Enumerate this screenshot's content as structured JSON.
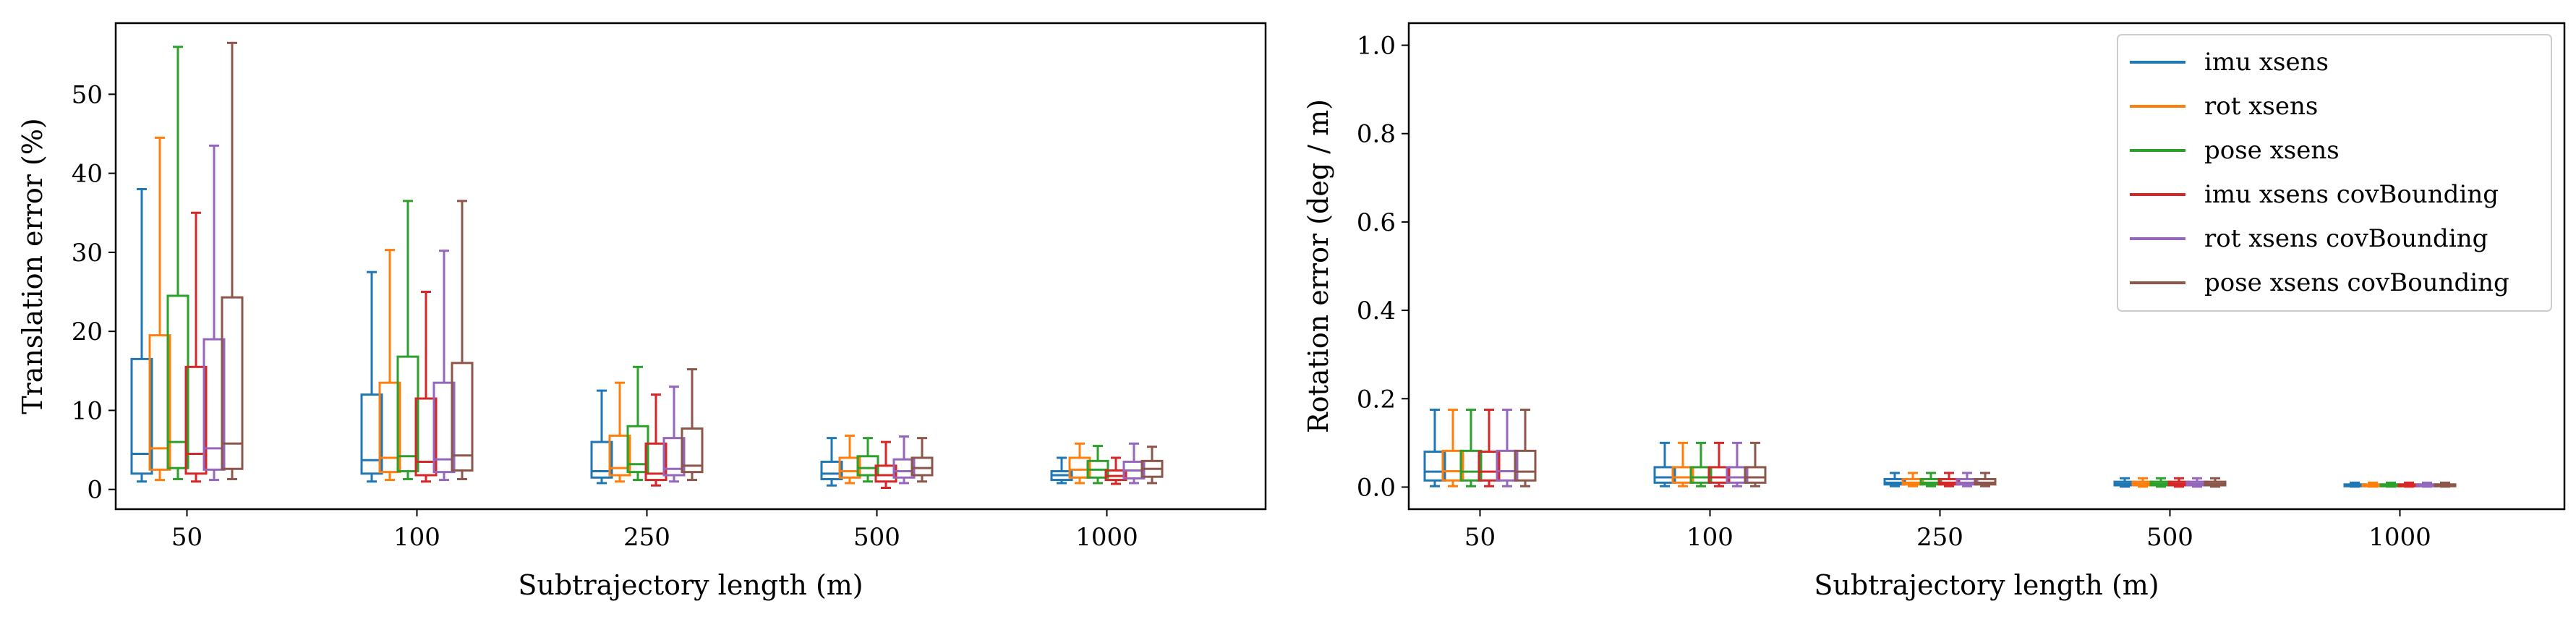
{
  "chart_data": [
    {
      "type": "box",
      "panel": "left",
      "xlabel": "Subtrajectory length (m)",
      "ylabel": "Translation error (%)",
      "categories": [
        "50",
        "100",
        "250",
        "500",
        "1000"
      ],
      "ylim": [
        -2.5,
        59
      ],
      "yticks": [
        0,
        10,
        20,
        30,
        40,
        50
      ],
      "series": [
        {
          "name": "imu xsens",
          "color": "#1f77b4",
          "boxes": [
            {
              "whislo": 1,
              "q1": 2,
              "med": 4.5,
              "q3": 16.5,
              "whishi": 38
            },
            {
              "whislo": 1,
              "q1": 2,
              "med": 3.7,
              "q3": 12,
              "whishi": 27.5
            },
            {
              "whislo": 0.8,
              "q1": 1.5,
              "med": 2.3,
              "q3": 6,
              "whishi": 12.5
            },
            {
              "whislo": 0.5,
              "q1": 1.3,
              "med": 2,
              "q3": 3.5,
              "whishi": 6.5
            },
            {
              "whislo": 0.8,
              "q1": 1.2,
              "med": 1.8,
              "q3": 2.3,
              "whishi": 4
            }
          ]
        },
        {
          "name": "rot xsens",
          "color": "#ff7f0e",
          "boxes": [
            {
              "whislo": 1.2,
              "q1": 2.5,
              "med": 5.2,
              "q3": 19.5,
              "whishi": 44.5
            },
            {
              "whislo": 1.2,
              "q1": 2.2,
              "med": 4,
              "q3": 13.5,
              "whishi": 30.3
            },
            {
              "whislo": 1,
              "q1": 1.8,
              "med": 2.7,
              "q3": 6.8,
              "whishi": 13.5
            },
            {
              "whislo": 0.8,
              "q1": 1.5,
              "med": 2.3,
              "q3": 4,
              "whishi": 6.8
            },
            {
              "whislo": 0.8,
              "q1": 1.5,
              "med": 2.5,
              "q3": 4,
              "whishi": 5.8
            }
          ]
        },
        {
          "name": "pose xsens",
          "color": "#2ca02c",
          "boxes": [
            {
              "whislo": 1.3,
              "q1": 2.7,
              "med": 6,
              "q3": 24.5,
              "whishi": 56
            },
            {
              "whislo": 1.3,
              "q1": 2.3,
              "med": 4.2,
              "q3": 16.8,
              "whishi": 36.5
            },
            {
              "whislo": 1.2,
              "q1": 2.2,
              "med": 3.2,
              "q3": 8,
              "whishi": 15.5
            },
            {
              "whislo": 1,
              "q1": 1.8,
              "med": 2.7,
              "q3": 4.2,
              "whishi": 6.5
            },
            {
              "whislo": 0.8,
              "q1": 1.5,
              "med": 2.5,
              "q3": 3.6,
              "whishi": 5.5
            }
          ]
        },
        {
          "name": "imu xsens covBounding",
          "color": "#d62728",
          "boxes": [
            {
              "whislo": 1,
              "q1": 2,
              "med": 4.5,
              "q3": 15.5,
              "whishi": 35
            },
            {
              "whislo": 1,
              "q1": 1.8,
              "med": 3.5,
              "q3": 11.5,
              "whishi": 25
            },
            {
              "whislo": 0.5,
              "q1": 1.2,
              "med": 2,
              "q3": 5.8,
              "whishi": 12
            },
            {
              "whislo": 0.2,
              "q1": 1,
              "med": 1.8,
              "q3": 3,
              "whishi": 6
            },
            {
              "whislo": 0.7,
              "q1": 1.2,
              "med": 1.7,
              "q3": 2.4,
              "whishi": 4
            }
          ]
        },
        {
          "name": "rot xsens covBounding",
          "color": "#9467bd",
          "boxes": [
            {
              "whislo": 1.2,
              "q1": 2.5,
              "med": 5.2,
              "q3": 19,
              "whishi": 43.5
            },
            {
              "whislo": 1.2,
              "q1": 2.2,
              "med": 3.8,
              "q3": 13.5,
              "whishi": 30.2
            },
            {
              "whislo": 1,
              "q1": 1.8,
              "med": 2.6,
              "q3": 6.5,
              "whishi": 13
            },
            {
              "whislo": 0.8,
              "q1": 1.5,
              "med": 2.3,
              "q3": 3.8,
              "whishi": 6.7
            },
            {
              "whislo": 0.8,
              "q1": 1.4,
              "med": 2.4,
              "q3": 3.5,
              "whishi": 5.8
            }
          ]
        },
        {
          "name": "pose xsens covBounding",
          "color": "#8c564b",
          "boxes": [
            {
              "whislo": 1.3,
              "q1": 2.6,
              "med": 5.8,
              "q3": 24.3,
              "whishi": 56.5
            },
            {
              "whislo": 1.3,
              "q1": 2.4,
              "med": 4.3,
              "q3": 16,
              "whishi": 36.5
            },
            {
              "whislo": 1.2,
              "q1": 2.2,
              "med": 3,
              "q3": 7.7,
              "whishi": 15.2
            },
            {
              "whislo": 1,
              "q1": 1.8,
              "med": 2.7,
              "q3": 4,
              "whishi": 6.5
            },
            {
              "whislo": 0.8,
              "q1": 1.6,
              "med": 2.6,
              "q3": 3.6,
              "whishi": 5.4
            }
          ]
        }
      ]
    },
    {
      "type": "box",
      "panel": "right",
      "xlabel": "Subtrajectory length (m)",
      "ylabel": "Rotation error (deg / m)",
      "categories": [
        "50",
        "100",
        "250",
        "500",
        "1000"
      ],
      "ylim": [
        -0.05,
        1.05
      ],
      "yticks": [
        0.0,
        0.2,
        0.4,
        0.6,
        0.8,
        1.0
      ],
      "ytick_labels": [
        "0.0",
        "0.2",
        "0.4",
        "0.6",
        "0.8",
        "1.0"
      ],
      "legend": "top-right",
      "series": [
        {
          "name": "imu xsens",
          "color": "#1f77b4",
          "boxes": [
            {
              "whislo": 0.002,
              "q1": 0.015,
              "med": 0.035,
              "q3": 0.08,
              "whishi": 0.175
            },
            {
              "whislo": 0.002,
              "q1": 0.01,
              "med": 0.022,
              "q3": 0.045,
              "whishi": 0.1
            },
            {
              "whislo": 0.002,
              "q1": 0.006,
              "med": 0.01,
              "q3": 0.018,
              "whishi": 0.032
            },
            {
              "whislo": 0.001,
              "q1": 0.004,
              "med": 0.007,
              "q3": 0.012,
              "whishi": 0.02
            },
            {
              "whislo": 0.001,
              "q1": 0.002,
              "med": 0.004,
              "q3": 0.006,
              "whishi": 0.01
            }
          ]
        },
        {
          "name": "rot xsens",
          "color": "#ff7f0e",
          "boxes": [
            {
              "whislo": 0.002,
              "q1": 0.015,
              "med": 0.036,
              "q3": 0.082,
              "whishi": 0.175
            },
            {
              "whislo": 0.002,
              "q1": 0.01,
              "med": 0.022,
              "q3": 0.045,
              "whishi": 0.1
            },
            {
              "whislo": 0.002,
              "q1": 0.006,
              "med": 0.01,
              "q3": 0.018,
              "whishi": 0.032
            },
            {
              "whislo": 0.001,
              "q1": 0.004,
              "med": 0.007,
              "q3": 0.012,
              "whishi": 0.02
            },
            {
              "whislo": 0.001,
              "q1": 0.002,
              "med": 0.004,
              "q3": 0.006,
              "whishi": 0.01
            }
          ]
        },
        {
          "name": "pose xsens",
          "color": "#2ca02c",
          "boxes": [
            {
              "whislo": 0.002,
              "q1": 0.015,
              "med": 0.035,
              "q3": 0.082,
              "whishi": 0.175
            },
            {
              "whislo": 0.002,
              "q1": 0.01,
              "med": 0.022,
              "q3": 0.045,
              "whishi": 0.1
            },
            {
              "whislo": 0.002,
              "q1": 0.006,
              "med": 0.01,
              "q3": 0.018,
              "whishi": 0.032
            },
            {
              "whislo": 0.001,
              "q1": 0.004,
              "med": 0.007,
              "q3": 0.012,
              "whishi": 0.02
            },
            {
              "whislo": 0.001,
              "q1": 0.002,
              "med": 0.004,
              "q3": 0.006,
              "whishi": 0.01
            }
          ]
        },
        {
          "name": "imu xsens covBounding",
          "color": "#d62728",
          "boxes": [
            {
              "whislo": 0.002,
              "q1": 0.015,
              "med": 0.035,
              "q3": 0.08,
              "whishi": 0.175
            },
            {
              "whislo": 0.002,
              "q1": 0.01,
              "med": 0.022,
              "q3": 0.045,
              "whishi": 0.1
            },
            {
              "whislo": 0.002,
              "q1": 0.006,
              "med": 0.01,
              "q3": 0.018,
              "whishi": 0.032
            },
            {
              "whislo": 0.001,
              "q1": 0.004,
              "med": 0.007,
              "q3": 0.012,
              "whishi": 0.02
            },
            {
              "whislo": 0.001,
              "q1": 0.002,
              "med": 0.004,
              "q3": 0.006,
              "whishi": 0.01
            }
          ]
        },
        {
          "name": "rot xsens covBounding",
          "color": "#9467bd",
          "boxes": [
            {
              "whislo": 0.002,
              "q1": 0.015,
              "med": 0.036,
              "q3": 0.082,
              "whishi": 0.175
            },
            {
              "whislo": 0.002,
              "q1": 0.01,
              "med": 0.022,
              "q3": 0.045,
              "whishi": 0.1
            },
            {
              "whislo": 0.002,
              "q1": 0.006,
              "med": 0.01,
              "q3": 0.018,
              "whishi": 0.032
            },
            {
              "whislo": 0.001,
              "q1": 0.004,
              "med": 0.007,
              "q3": 0.012,
              "whishi": 0.02
            },
            {
              "whislo": 0.001,
              "q1": 0.002,
              "med": 0.004,
              "q3": 0.006,
              "whishi": 0.01
            }
          ]
        },
        {
          "name": "pose xsens covBounding",
          "color": "#8c564b",
          "boxes": [
            {
              "whislo": 0.002,
              "q1": 0.015,
              "med": 0.035,
              "q3": 0.082,
              "whishi": 0.175
            },
            {
              "whislo": 0.002,
              "q1": 0.01,
              "med": 0.022,
              "q3": 0.045,
              "whishi": 0.1
            },
            {
              "whislo": 0.002,
              "q1": 0.006,
              "med": 0.01,
              "q3": 0.018,
              "whishi": 0.032
            },
            {
              "whislo": 0.001,
              "q1": 0.004,
              "med": 0.007,
              "q3": 0.012,
              "whishi": 0.02
            },
            {
              "whislo": 0.001,
              "q1": 0.002,
              "med": 0.004,
              "q3": 0.006,
              "whishi": 0.01
            }
          ]
        }
      ]
    }
  ]
}
